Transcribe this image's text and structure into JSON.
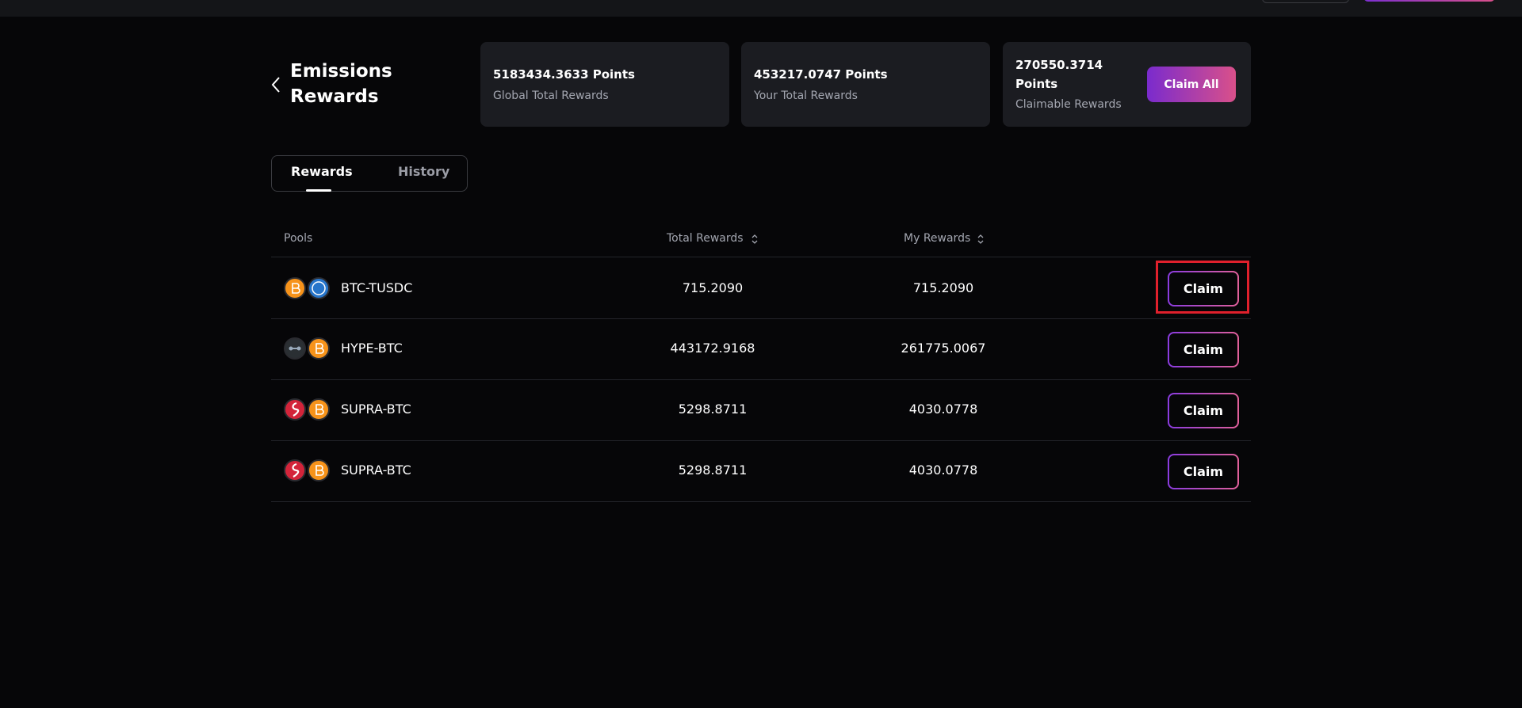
{
  "header": {
    "title": "Emissions Rewards"
  },
  "cards": [
    {
      "value": "5183434.3633 Points",
      "label": "Global Total Rewards"
    },
    {
      "value": "453217.0747 Points",
      "label": "Your Total Rewards"
    },
    {
      "value": "270550.3714 Points",
      "label": "Claimable Rewards",
      "button": "Claim All"
    }
  ],
  "tabs": [
    "Rewards",
    "History"
  ],
  "table": {
    "columns": [
      "Pools",
      "Total Rewards",
      "My Rewards"
    ],
    "rows": [
      {
        "pool": "BTC-TUSDC",
        "total": "715.2090",
        "mine": "715.2090",
        "action": "Claim"
      },
      {
        "pool": "HYPE-BTC",
        "total": "443172.9168",
        "mine": "261775.0067",
        "action": "Claim"
      },
      {
        "pool": "SUPRA-BTC",
        "total": "5298.8711",
        "mine": "4030.0778",
        "action": "Claim"
      },
      {
        "pool": "SUPRA-BTC",
        "total": "5298.8711",
        "mine": "4030.0778",
        "action": "Claim"
      }
    ]
  }
}
